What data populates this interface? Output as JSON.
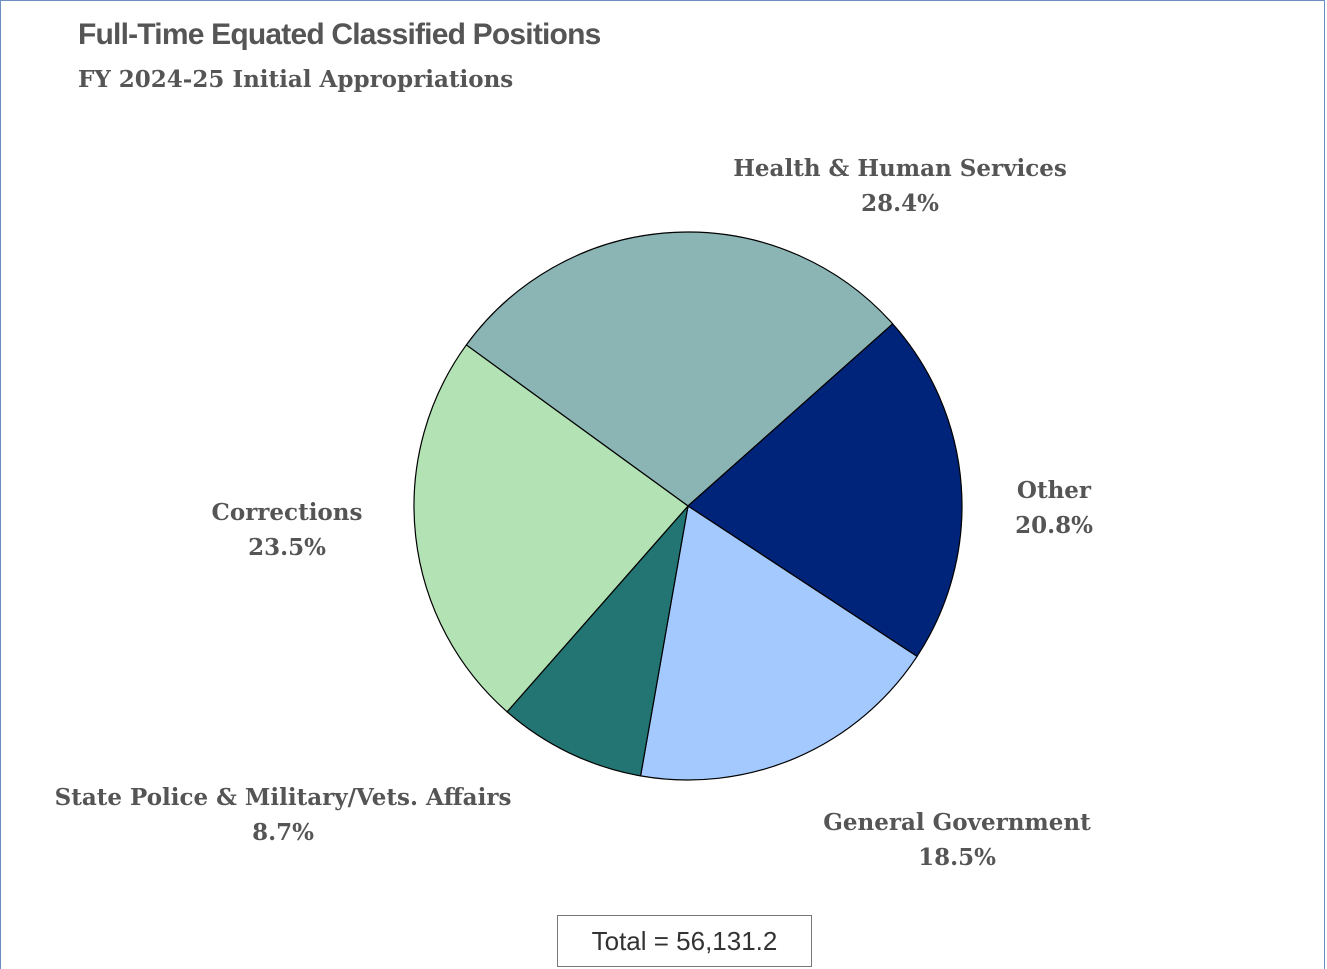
{
  "chart_data": {
    "type": "pie",
    "title": "Full-Time Equated Classified Positions",
    "subtitle": "FY 2024-25 Initial Appropriations",
    "slices": [
      {
        "label": "Health & Human Services",
        "value": 28.4,
        "display": "28.4%",
        "color": "#8bb4b4"
      },
      {
        "label": "Other",
        "value": 20.8,
        "display": "20.8%",
        "color": "#002479"
      },
      {
        "label": "General Government",
        "value": 18.5,
        "display": "18.5%",
        "color": "#a4c9ff"
      },
      {
        "label": "State Police & Military/Vets. Affairs",
        "value": 8.7,
        "display": "8.7%",
        "color": "#227572"
      },
      {
        "label": "Corrections",
        "value": 23.5,
        "display": "23.5%",
        "color": "#b3e2b5"
      }
    ],
    "annotation": "Total = 56,131.2"
  }
}
